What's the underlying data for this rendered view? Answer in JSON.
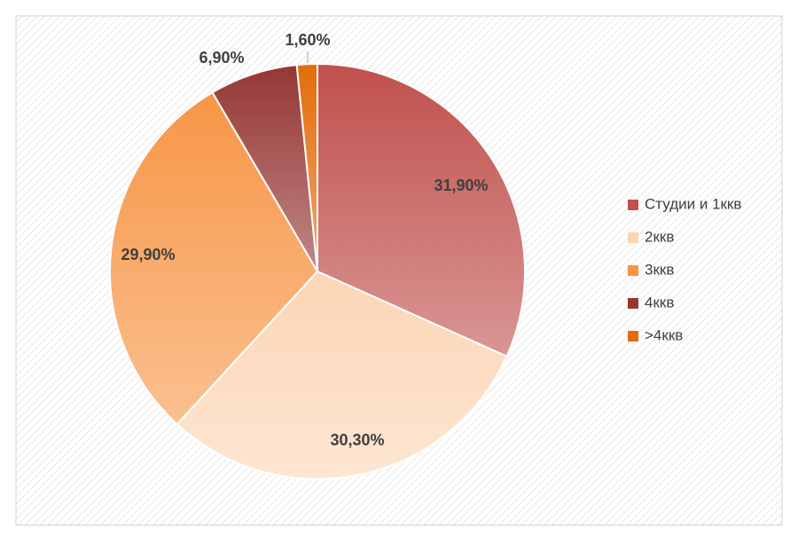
{
  "chart_data": {
    "type": "pie",
    "categories": [
      "Студии и 1ккв",
      "2ккв",
      "3ккв",
      "4ккв",
      ">4ккв"
    ],
    "values": [
      31.9,
      30.3,
      29.9,
      6.9,
      1.6
    ],
    "value_labels": [
      "31,90%",
      "30,30%",
      "29,90%",
      "6,90%",
      "1,60%"
    ],
    "colors": [
      "#c0504d",
      "#fcd5b5",
      "#f79646",
      "#953735",
      "#e46c0a"
    ],
    "legend": "right"
  }
}
